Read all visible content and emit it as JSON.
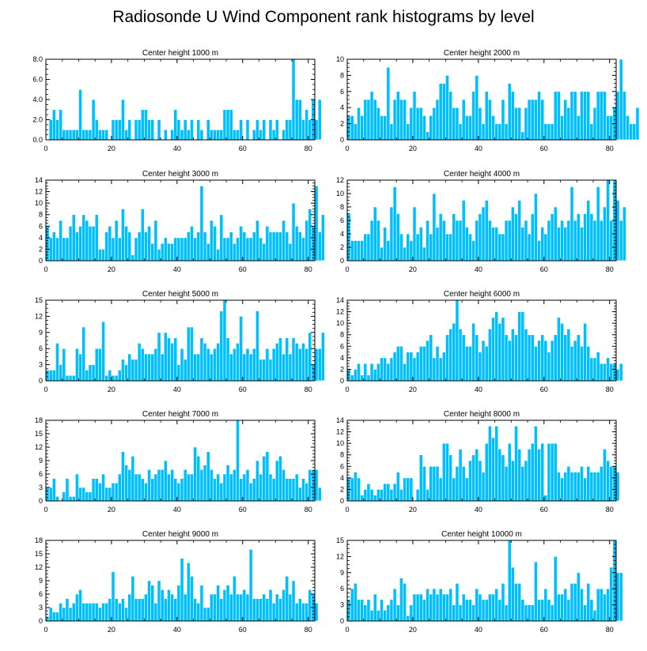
{
  "title": "Radiosonde U Wind Component rank histograms by level",
  "bar_color": "#00BFFF",
  "chart_data": [
    {
      "type": "bar",
      "title": "Center height 1000 m",
      "ylim": [
        0,
        8
      ],
      "yticks": [
        0,
        2,
        4,
        6,
        8
      ],
      "ytick_labels": [
        "0.0",
        "2.0",
        "4.0",
        "6.0",
        "8.0"
      ],
      "xticks": [
        0,
        20,
        40,
        60,
        80
      ],
      "values": [
        0,
        2,
        3,
        2,
        3,
        1,
        1,
        1,
        1,
        1,
        5,
        1,
        1,
        1,
        4,
        2,
        1,
        1,
        1,
        0,
        2,
        2,
        2,
        4,
        1,
        2,
        0,
        2,
        2,
        3,
        3,
        2,
        2,
        0,
        2,
        0,
        1,
        0,
        1,
        3,
        2,
        1,
        2,
        1,
        2,
        0,
        2,
        1,
        0,
        2,
        1,
        1,
        1,
        1,
        3,
        3,
        3,
        1,
        1,
        2,
        0,
        2,
        0,
        1,
        2,
        1,
        2,
        0,
        2,
        1,
        2,
        0,
        1,
        2,
        2,
        8,
        4,
        4,
        2,
        3,
        2,
        4,
        2,
        4
      ]
    },
    {
      "type": "bar",
      "title": "Center height 2000 m",
      "ylim": [
        0,
        10
      ],
      "yticks": [
        0,
        2,
        4,
        6,
        8,
        10
      ],
      "ytick_labels": [
        "0",
        "2",
        "4",
        "6",
        "8",
        "10"
      ],
      "xticks": [
        0,
        20,
        40,
        60,
        80
      ],
      "values": [
        3,
        3,
        2,
        4,
        3,
        5,
        5,
        6,
        5,
        4,
        3,
        3,
        9,
        2,
        5,
        6,
        5,
        5,
        2,
        4,
        6,
        4,
        4,
        3,
        1,
        3,
        4,
        5,
        7,
        7,
        8,
        6,
        4,
        4,
        2,
        5,
        3,
        3,
        6,
        8,
        4,
        2,
        6,
        5,
        3,
        2,
        2,
        5,
        2,
        7,
        6,
        4,
        4,
        1,
        4,
        5,
        5,
        5,
        6,
        5,
        2,
        2,
        2,
        6,
        6,
        3,
        5,
        4,
        6,
        6,
        3,
        6,
        6,
        6,
        2,
        4,
        6,
        6,
        6,
        3,
        3,
        4,
        6,
        10,
        6,
        3,
        2,
        2,
        4
      ]
    },
    {
      "type": "bar",
      "title": "Center height 3000 m",
      "ylim": [
        0,
        14
      ],
      "yticks": [
        0,
        2,
        4,
        6,
        8,
        10,
        12,
        14
      ],
      "ytick_labels": [
        "0",
        "2",
        "4",
        "6",
        "8",
        "10",
        "12",
        "14"
      ],
      "xticks": [
        0,
        20,
        40,
        60,
        80
      ],
      "values": [
        6,
        4,
        5,
        4,
        7,
        4,
        4,
        6,
        8,
        5,
        6,
        8,
        7,
        6,
        6,
        8,
        2,
        2,
        5,
        6,
        4,
        7,
        4,
        9,
        6,
        5,
        1,
        4,
        5,
        9,
        5,
        6,
        3,
        7,
        2,
        3,
        4,
        3,
        3,
        4,
        4,
        4,
        4,
        5,
        6,
        4,
        5,
        13,
        5,
        3,
        7,
        6,
        2,
        8,
        4,
        4,
        5,
        3,
        4,
        6,
        5,
        4,
        4,
        5,
        7,
        4,
        3,
        6,
        5,
        5,
        5,
        5,
        7,
        5,
        3,
        10,
        6,
        5,
        4,
        7,
        9,
        6,
        13,
        5,
        8
      ]
    },
    {
      "type": "bar",
      "title": "Center height 4000 m",
      "ylim": [
        0,
        12
      ],
      "yticks": [
        0,
        2,
        4,
        6,
        8,
        10,
        12
      ],
      "ytick_labels": [
        "0",
        "2",
        "4",
        "6",
        "8",
        "10",
        "12"
      ],
      "xticks": [
        0,
        20,
        40,
        60,
        80
      ],
      "values": [
        7,
        3,
        3,
        3,
        3,
        4,
        4,
        6,
        8,
        6,
        2,
        5,
        3,
        8,
        11,
        7,
        4,
        2,
        4,
        3,
        8,
        4,
        5,
        2,
        6,
        4,
        10,
        5,
        7,
        6,
        4,
        4,
        7,
        6,
        6,
        9,
        5,
        4,
        3,
        6,
        7,
        8,
        9,
        6,
        5,
        5,
        4,
        4,
        6,
        6,
        8,
        7,
        9,
        5,
        6,
        4,
        7,
        10,
        3,
        5,
        4,
        6,
        7,
        8,
        5,
        6,
        5,
        6,
        11,
        6,
        7,
        5,
        7,
        9,
        7,
        6,
        11,
        6,
        8,
        12,
        6,
        12,
        9,
        6,
        8
      ]
    },
    {
      "type": "bar",
      "title": "Center height 5000 m",
      "ylim": [
        0,
        15
      ],
      "yticks": [
        0,
        3,
        6,
        9,
        12,
        15
      ],
      "ytick_labels": [
        "0",
        "3",
        "6",
        "9",
        "12",
        "15"
      ],
      "xticks": [
        0,
        20,
        40,
        60,
        80
      ],
      "values": [
        2,
        2,
        2,
        7,
        3,
        6,
        1,
        1,
        1,
        6,
        5,
        10,
        2,
        3,
        3,
        6,
        6,
        11,
        1,
        2,
        1,
        1,
        2,
        4,
        3,
        5,
        4,
        4,
        7,
        6,
        5,
        5,
        5,
        6,
        9,
        5,
        9,
        8,
        7,
        8,
        3,
        6,
        4,
        10,
        10,
        5,
        5,
        8,
        7,
        6,
        5,
        6,
        7,
        13,
        15,
        8,
        5,
        6,
        7,
        12,
        5,
        6,
        5,
        6,
        13,
        4,
        4,
        6,
        4,
        6,
        7,
        8,
        5,
        8,
        5,
        8,
        7,
        6,
        7,
        6,
        9,
        3,
        6,
        6,
        9
      ]
    },
    {
      "type": "bar",
      "title": "Center height 6000 m",
      "ylim": [
        0,
        14
      ],
      "yticks": [
        0,
        2,
        4,
        6,
        8,
        10,
        12,
        14
      ],
      "ytick_labels": [
        "0",
        "2",
        "4",
        "6",
        "8",
        "10",
        "12",
        "14"
      ],
      "xticks": [
        0,
        20,
        40,
        60,
        80
      ],
      "values": [
        2,
        1,
        2,
        3,
        1,
        3,
        1,
        3,
        2,
        3,
        4,
        4,
        3,
        4,
        5,
        6,
        6,
        3,
        5,
        5,
        4,
        5,
        6,
        6,
        7,
        8,
        4,
        6,
        4,
        5,
        8,
        9,
        10,
        14,
        9,
        8,
        6,
        6,
        10,
        8,
        5,
        7,
        6,
        9,
        11,
        12,
        10,
        11,
        8,
        7,
        9,
        8,
        12,
        12,
        9,
        8,
        8,
        6,
        7,
        8,
        7,
        5,
        7,
        8,
        11,
        10,
        8,
        9,
        6,
        7,
        8,
        6,
        10,
        6,
        4,
        4,
        5,
        3,
        3,
        4,
        3,
        3,
        2,
        3
      ]
    },
    {
      "type": "bar",
      "title": "Center height 7000 m",
      "ylim": [
        0,
        18
      ],
      "yticks": [
        0,
        3,
        6,
        9,
        12,
        15,
        18
      ],
      "ytick_labels": [
        "0",
        "3",
        "6",
        "9",
        "12",
        "15",
        "18"
      ],
      "xticks": [
        0,
        20,
        40,
        60,
        80
      ],
      "values": [
        3,
        3,
        5,
        1,
        0,
        2,
        5,
        1,
        1,
        6,
        3,
        3,
        2,
        2,
        5,
        5,
        4,
        6,
        3,
        3,
        4,
        4,
        6,
        11,
        8,
        7,
        10,
        6,
        6,
        5,
        4,
        7,
        5,
        6,
        7,
        7,
        9,
        6,
        7,
        5,
        4,
        5,
        7,
        6,
        6,
        12,
        10,
        7,
        8,
        11,
        7,
        5,
        6,
        4,
        6,
        8,
        6,
        7,
        18,
        5,
        6,
        7,
        4,
        5,
        9,
        6,
        10,
        11,
        6,
        5,
        9,
        10,
        7,
        5,
        5,
        5,
        6,
        3,
        5,
        4,
        7,
        7,
        7,
        3
      ]
    },
    {
      "type": "bar",
      "title": "Center height 8000 m",
      "ylim": [
        0,
        14
      ],
      "yticks": [
        0,
        2,
        4,
        6,
        8,
        10,
        12,
        14
      ],
      "ytick_labels": [
        "0",
        "2",
        "4",
        "6",
        "8",
        "10",
        "12",
        "14"
      ],
      "xticks": [
        0,
        20,
        40,
        60,
        80
      ],
      "values": [
        4,
        4,
        5,
        4,
        1,
        2,
        3,
        2,
        1,
        2,
        2,
        3,
        3,
        2,
        3,
        5,
        2,
        4,
        4,
        4,
        0,
        2,
        8,
        6,
        2,
        6,
        6,
        6,
        4,
        10,
        10,
        8,
        4,
        6,
        9,
        6,
        4,
        7,
        8,
        9,
        7,
        5,
        10,
        13,
        11,
        13,
        9,
        8,
        6,
        10,
        7,
        13,
        9,
        6,
        7,
        9,
        10,
        13,
        9,
        10,
        1,
        10,
        10,
        10,
        5,
        4,
        5,
        6,
        5,
        5,
        5,
        6,
        4,
        6,
        5,
        5,
        5,
        6,
        9,
        7,
        6,
        6,
        5
      ]
    },
    {
      "type": "bar",
      "title": "Center height 9000 m",
      "ylim": [
        0,
        18
      ],
      "yticks": [
        0,
        3,
        6,
        9,
        12,
        15,
        18
      ],
      "ytick_labels": [
        "0",
        "3",
        "6",
        "9",
        "12",
        "15",
        "18"
      ],
      "xticks": [
        0,
        20,
        40,
        60,
        80
      ],
      "values": [
        1,
        3,
        2,
        2,
        4,
        3,
        5,
        3,
        4,
        6,
        7,
        4,
        4,
        4,
        4,
        4,
        3,
        4,
        4,
        5,
        11,
        5,
        4,
        5,
        3,
        6,
        10,
        5,
        5,
        5,
        6,
        9,
        8,
        4,
        9,
        7,
        5,
        7,
        6,
        5,
        8,
        14,
        6,
        13,
        10,
        5,
        4,
        8,
        3,
        3,
        6,
        6,
        8,
        5,
        7,
        8,
        6,
        10,
        6,
        6,
        7,
        6,
        16,
        5,
        5,
        5,
        6,
        5,
        7,
        4,
        6,
        5,
        7,
        10,
        6,
        9,
        4,
        5,
        4,
        4,
        7,
        6,
        4
      ]
    },
    {
      "type": "bar",
      "title": "Center height 10000 m",
      "ylim": [
        0,
        15
      ],
      "yticks": [
        0,
        3,
        6,
        9,
        12,
        15
      ],
      "ytick_labels": [
        "0",
        "3",
        "6",
        "9",
        "12",
        "15"
      ],
      "xticks": [
        0,
        20,
        40,
        60,
        80
      ],
      "values": [
        4,
        6,
        7,
        4,
        4,
        3,
        4,
        2,
        5,
        2,
        4,
        2,
        3,
        4,
        6,
        3,
        8,
        7,
        1,
        3,
        5,
        5,
        5,
        4,
        6,
        5,
        6,
        5,
        6,
        5,
        5,
        6,
        3,
        7,
        3,
        5,
        4,
        4,
        3,
        6,
        5,
        4,
        4,
        5,
        5,
        6,
        4,
        7,
        3,
        15,
        10,
        7,
        7,
        4,
        3,
        3,
        3,
        11,
        4,
        4,
        6,
        4,
        3,
        12,
        5,
        5,
        6,
        4,
        7,
        7,
        9,
        6,
        3,
        7,
        4,
        2,
        6,
        6,
        5,
        6,
        10,
        15,
        9,
        9
      ]
    }
  ]
}
